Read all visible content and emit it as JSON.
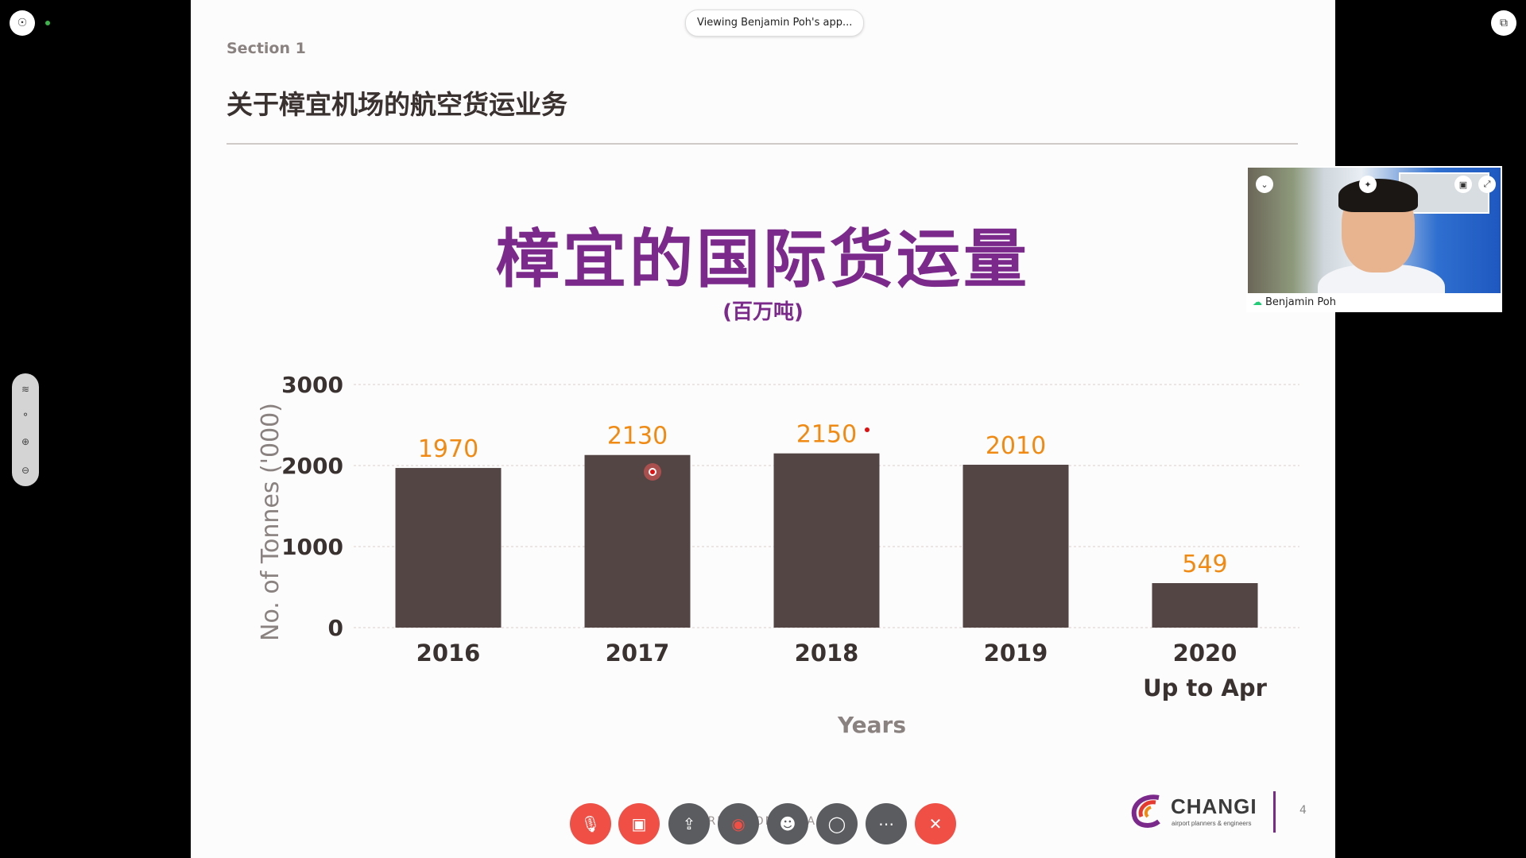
{
  "meeting": {
    "viewing_label": "Viewing Benjamin Poh's app...",
    "participant_name": "Benjamin Poh",
    "colors": {
      "end_call": "#ef4f45",
      "toolbar_dark": "#5b5c5f"
    }
  },
  "slide": {
    "section": "Section 1",
    "heading": "关于樟宜机场的航空货运业务",
    "page_number": "4",
    "logo_text": "CHANGI",
    "logo_subtext": "airport planners & engineers",
    "watermark": "TRICK CONSULTA..."
  },
  "toolbar": {
    "mute_label": "Mute",
    "video_label": "Stop video",
    "share_label": "Share",
    "record_label": "Record",
    "participants_label": "Participants",
    "chat_label": "Chat",
    "more_label": "More",
    "end_label": "Leave"
  },
  "chart_data": {
    "type": "bar",
    "title": "樟宜的国际货运量",
    "subtitle": "(百万吨)",
    "xlabel": "Years",
    "ylabel": "No. of Tonnes ('000)",
    "categories": [
      "2016",
      "2017",
      "2018",
      "2019",
      "2020"
    ],
    "category_sublabels": [
      "",
      "",
      "",
      "",
      "Up to Apr"
    ],
    "values": [
      1970,
      2130,
      2150,
      2010,
      549
    ],
    "data_labels": [
      "1970",
      "2130",
      "2150",
      "2010",
      "549"
    ],
    "yticks": [
      "0",
      "1000",
      "2000",
      "3000"
    ],
    "ylim": [
      0,
      3000
    ],
    "bar_color": "#524543",
    "label_color": "#f08a12",
    "grid": true
  }
}
